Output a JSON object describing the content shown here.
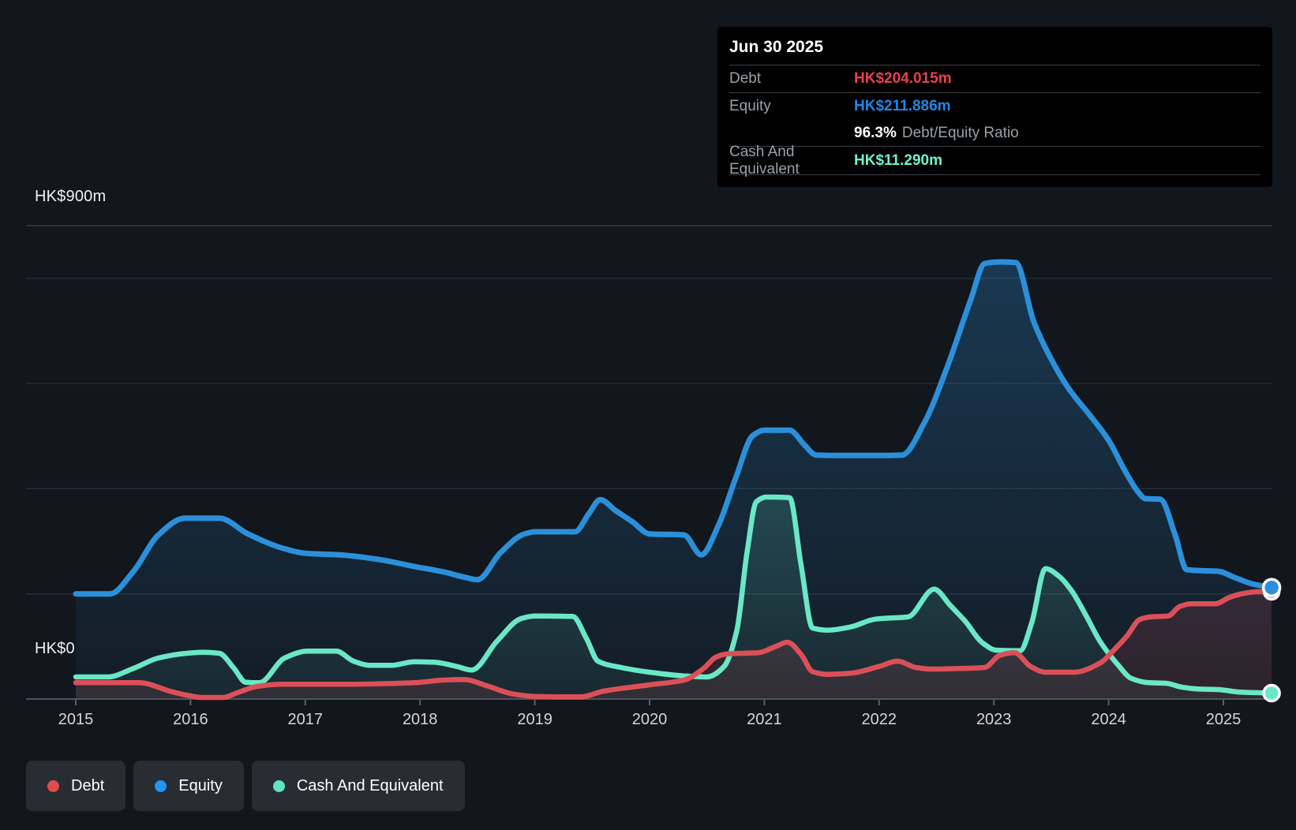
{
  "tooltip": {
    "date": "Jun 30 2025",
    "debt_label": "Debt",
    "debt_value": "HK$204.015m",
    "debt_color": "#ea4149",
    "equity_label": "Equity",
    "equity_value": "HK$211.886m",
    "equity_color": "#1e88e5",
    "ratio_value": "96.3%",
    "ratio_label": "Debt/Equity Ratio",
    "cash_label": "Cash And Equivalent",
    "cash_value": "HK$11.290m",
    "cash_color": "#70f2d1"
  },
  "y_axis": {
    "top_label": "HK$900m",
    "bottom_label": "HK$0"
  },
  "legend": {
    "items": [
      {
        "label": "Debt",
        "color": "#e04c4c"
      },
      {
        "label": "Equity",
        "color": "#2196f3"
      },
      {
        "label": "Cash And Equivalent",
        "color": "#5fe3c1"
      }
    ]
  },
  "chart_data": {
    "type": "area",
    "unit": "HK$ millions",
    "x_axis": {
      "tick_years": [
        2015,
        2016,
        2017,
        2018,
        2019,
        2020,
        2021,
        2022,
        2023,
        2024,
        2025
      ]
    },
    "y_axis": {
      "min": 0,
      "max": 900,
      "gridline_values": [
        200,
        400,
        600,
        800
      ],
      "top_value": 900
    },
    "grid_color": "#262d35",
    "top_grid_color": "#343b44",
    "axis_color": "#4d545e",
    "tick_color": "#5a616b",
    "series": [
      {
        "name": "Equity",
        "color": "#2b90d9",
        "points": [
          [
            2015.0,
            200
          ],
          [
            2015.3,
            200
          ],
          [
            2015.5,
            242
          ],
          [
            2015.72,
            312
          ],
          [
            2015.95,
            344
          ],
          [
            2016.25,
            344
          ],
          [
            2016.5,
            314
          ],
          [
            2016.8,
            287
          ],
          [
            2017.0,
            277
          ],
          [
            2017.3,
            274
          ],
          [
            2017.65,
            265
          ],
          [
            2017.95,
            252
          ],
          [
            2018.2,
            242
          ],
          [
            2018.38,
            232
          ],
          [
            2018.5,
            227
          ],
          [
            2018.7,
            278
          ],
          [
            2018.9,
            313
          ],
          [
            2019.0,
            318
          ],
          [
            2019.35,
            318
          ],
          [
            2019.47,
            352
          ],
          [
            2019.57,
            379
          ],
          [
            2019.7,
            359
          ],
          [
            2019.85,
            337
          ],
          [
            2020.0,
            314
          ],
          [
            2020.3,
            312
          ],
          [
            2020.45,
            274
          ],
          [
            2020.6,
            330
          ],
          [
            2020.75,
            420
          ],
          [
            2020.9,
            501
          ],
          [
            2021.0,
            511
          ],
          [
            2021.22,
            511
          ],
          [
            2021.35,
            483
          ],
          [
            2021.45,
            464
          ],
          [
            2021.7,
            463
          ],
          [
            2022.0,
            463
          ],
          [
            2022.2,
            464
          ],
          [
            2022.4,
            528
          ],
          [
            2022.6,
            635
          ],
          [
            2022.8,
            760
          ],
          [
            2022.92,
            828
          ],
          [
            2023.05,
            831
          ],
          [
            2023.19,
            830
          ],
          [
            2023.35,
            716
          ],
          [
            2023.5,
            646
          ],
          [
            2023.65,
            591
          ],
          [
            2023.85,
            536
          ],
          [
            2024.0,
            492
          ],
          [
            2024.15,
            431
          ],
          [
            2024.26,
            393
          ],
          [
            2024.32,
            381
          ],
          [
            2024.45,
            380
          ],
          [
            2024.58,
            312
          ],
          [
            2024.68,
            246
          ],
          [
            2024.8,
            244
          ],
          [
            2024.95,
            243
          ],
          [
            2025.1,
            231
          ],
          [
            2025.25,
            219
          ],
          [
            2025.42,
            211.886
          ]
        ]
      },
      {
        "name": "Cash And Equivalent",
        "color": "#6ae8c6",
        "points": [
          [
            2015.0,
            42
          ],
          [
            2015.28,
            42
          ],
          [
            2015.5,
            58
          ],
          [
            2015.72,
            78
          ],
          [
            2015.97,
            87
          ],
          [
            2016.12,
            89
          ],
          [
            2016.25,
            87
          ],
          [
            2016.38,
            58
          ],
          [
            2016.48,
            32
          ],
          [
            2016.6,
            31
          ],
          [
            2016.82,
            78
          ],
          [
            2017.02,
            91
          ],
          [
            2017.27,
            91
          ],
          [
            2017.42,
            72
          ],
          [
            2017.57,
            64
          ],
          [
            2017.75,
            64
          ],
          [
            2017.95,
            71
          ],
          [
            2018.12,
            70
          ],
          [
            2018.32,
            62
          ],
          [
            2018.45,
            55
          ],
          [
            2018.67,
            110
          ],
          [
            2018.88,
            153
          ],
          [
            2019.0,
            158
          ],
          [
            2019.33,
            157
          ],
          [
            2019.45,
            115
          ],
          [
            2019.55,
            72
          ],
          [
            2019.75,
            60
          ],
          [
            2020.0,
            51
          ],
          [
            2020.3,
            44
          ],
          [
            2020.5,
            42
          ],
          [
            2020.65,
            62
          ],
          [
            2020.76,
            130
          ],
          [
            2020.85,
            280
          ],
          [
            2020.93,
            375
          ],
          [
            2021.02,
            384
          ],
          [
            2021.22,
            383
          ],
          [
            2021.32,
            255
          ],
          [
            2021.42,
            135
          ],
          [
            2021.55,
            131
          ],
          [
            2021.75,
            137
          ],
          [
            2021.97,
            152
          ],
          [
            2022.1,
            154
          ],
          [
            2022.25,
            156
          ],
          [
            2022.48,
            209
          ],
          [
            2022.62,
            178
          ],
          [
            2022.75,
            148
          ],
          [
            2022.9,
            107
          ],
          [
            2023.02,
            93
          ],
          [
            2023.23,
            92
          ],
          [
            2023.33,
            145
          ],
          [
            2023.45,
            248
          ],
          [
            2023.57,
            233
          ],
          [
            2023.68,
            205
          ],
          [
            2023.8,
            160
          ],
          [
            2023.93,
            108
          ],
          [
            2024.07,
            68
          ],
          [
            2024.2,
            39
          ],
          [
            2024.35,
            31
          ],
          [
            2024.5,
            30
          ],
          [
            2024.63,
            23
          ],
          [
            2024.78,
            19
          ],
          [
            2024.95,
            18
          ],
          [
            2025.15,
            13
          ],
          [
            2025.42,
            11.29
          ]
        ]
      },
      {
        "name": "Debt",
        "color": "#db5058",
        "points": [
          [
            2015.0,
            31
          ],
          [
            2015.55,
            31
          ],
          [
            2015.85,
            13
          ],
          [
            2016.0,
            6
          ],
          [
            2016.1,
            3
          ],
          [
            2016.28,
            3
          ],
          [
            2016.42,
            13
          ],
          [
            2016.58,
            24
          ],
          [
            2016.8,
            28
          ],
          [
            2017.3,
            28
          ],
          [
            2017.95,
            31
          ],
          [
            2018.2,
            36
          ],
          [
            2018.38,
            37
          ],
          [
            2018.6,
            24
          ],
          [
            2018.8,
            10
          ],
          [
            2019.0,
            5
          ],
          [
            2019.4,
            4
          ],
          [
            2019.6,
            15
          ],
          [
            2020.0,
            27
          ],
          [
            2020.3,
            36
          ],
          [
            2020.47,
            58
          ],
          [
            2020.58,
            80
          ],
          [
            2020.68,
            86
          ],
          [
            2020.95,
            88
          ],
          [
            2021.1,
            100
          ],
          [
            2021.2,
            108
          ],
          [
            2021.32,
            85
          ],
          [
            2021.42,
            52
          ],
          [
            2021.55,
            47
          ],
          [
            2021.75,
            49
          ],
          [
            2022.0,
            62
          ],
          [
            2022.16,
            72
          ],
          [
            2022.32,
            60
          ],
          [
            2022.45,
            57
          ],
          [
            2022.7,
            58
          ],
          [
            2022.92,
            60
          ],
          [
            2023.05,
            83
          ],
          [
            2023.18,
            88
          ],
          [
            2023.32,
            62
          ],
          [
            2023.45,
            51
          ],
          [
            2023.7,
            51
          ],
          [
            2023.93,
            69
          ],
          [
            2024.05,
            94
          ],
          [
            2024.16,
            120
          ],
          [
            2024.27,
            151
          ],
          [
            2024.36,
            156
          ],
          [
            2024.52,
            158
          ],
          [
            2024.62,
            176
          ],
          [
            2024.72,
            181
          ],
          [
            2024.93,
            181
          ],
          [
            2025.05,
            193
          ],
          [
            2025.18,
            201
          ],
          [
            2025.3,
            204
          ],
          [
            2025.42,
            204.015
          ]
        ]
      }
    ]
  }
}
